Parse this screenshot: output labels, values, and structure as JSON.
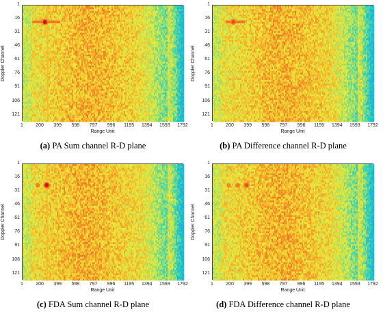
{
  "chart_data": [
    {
      "type": "heatmap",
      "xlabel": "Range Unit",
      "ylabel": "Doppler Channel",
      "x_ticks": [
        "1",
        "200",
        "399",
        "598",
        "797",
        "996",
        "1195",
        "1394",
        "1593",
        "1792"
      ],
      "y_ticks": [
        "1",
        "16",
        "31",
        "46",
        "61",
        "76",
        "91",
        "106",
        "121"
      ],
      "xlim": [
        1,
        1800
      ],
      "ylim": [
        1,
        128
      ],
      "colormap": [
        "#1fb4d6",
        "#35d3b7",
        "#9ee06a",
        "#e9ea3b",
        "#f5b52c",
        "#ef6a20",
        "#cf1515"
      ],
      "caption_tag": "(a)",
      "caption_text": " PA Sum channel R-D plane",
      "hot_spots": [
        {
          "range": 250,
          "doppler": 19,
          "intensity": 1.0
        }
      ],
      "clutter_ridges": [
        {
          "kind": "doppler_line",
          "doppler": 19,
          "range_start": 110,
          "range_end": 420
        },
        {
          "kind": "range_line",
          "range": 280
        }
      ],
      "noise_peak_range": 760
    },
    {
      "type": "heatmap",
      "xlabel": "Range Unit",
      "ylabel": "Doppler Channel",
      "x_ticks": [
        "1",
        "200",
        "399",
        "598",
        "797",
        "996",
        "1195",
        "1394",
        "1593",
        "1792"
      ],
      "y_ticks": [
        "1",
        "16",
        "31",
        "46",
        "61",
        "76",
        "91",
        "106",
        "121"
      ],
      "xlim": [
        1,
        1800
      ],
      "ylim": [
        1,
        128
      ],
      "colormap": [
        "#1fb4d6",
        "#35d3b7",
        "#9ee06a",
        "#e9ea3b",
        "#f5b52c",
        "#ef6a20",
        "#cf1515"
      ],
      "caption_tag": "(b)",
      "caption_text": " PA Difference channel R-D plane",
      "hot_spots": [
        {
          "range": 230,
          "doppler": 19,
          "intensity": 0.75
        }
      ],
      "clutter_ridges": [
        {
          "kind": "doppler_line",
          "doppler": 19,
          "range_start": 150,
          "range_end": 360
        }
      ],
      "noise_peak_range": 800
    },
    {
      "type": "heatmap",
      "xlabel": "Range Unit",
      "ylabel": "Doppler Channel",
      "x_ticks": [
        "1",
        "200",
        "399",
        "598",
        "797",
        "996",
        "1195",
        "1394",
        "1593",
        "1792"
      ],
      "y_ticks": [
        "1",
        "16",
        "31",
        "46",
        "61",
        "76",
        "91",
        "106",
        "121"
      ],
      "xlim": [
        1,
        1800
      ],
      "ylim": [
        1,
        128
      ],
      "colormap": [
        "#1fb4d6",
        "#35d3b7",
        "#9ee06a",
        "#e9ea3b",
        "#f5b52c",
        "#ef6a20",
        "#cf1515"
      ],
      "caption_tag": "(c)",
      "caption_text": " FDA Sum channel R-D plane",
      "hot_spots": [
        {
          "range": 270,
          "doppler": 24,
          "intensity": 1.0
        },
        {
          "range": 170,
          "doppler": 24,
          "intensity": 0.45
        }
      ],
      "clutter_ridges": [
        {
          "kind": "range_line",
          "range": 275
        }
      ],
      "noise_peak_range": 700
    },
    {
      "type": "heatmap",
      "xlabel": "Range Unit",
      "ylabel": "Doppler Channel",
      "x_ticks": [
        "1",
        "200",
        "399",
        "598",
        "797",
        "996",
        "1195",
        "1394",
        "1593",
        "1792"
      ],
      "y_ticks": [
        "1",
        "16",
        "31",
        "46",
        "61",
        "76",
        "91",
        "106",
        "121"
      ],
      "xlim": [
        1,
        1800
      ],
      "ylim": [
        1,
        128
      ],
      "colormap": [
        "#1fb4d6",
        "#35d3b7",
        "#9ee06a",
        "#e9ea3b",
        "#f5b52c",
        "#ef6a20",
        "#cf1515"
      ],
      "caption_tag": "(d)",
      "caption_text": " FDA Difference channel R-D plane",
      "hot_spots": [
        {
          "range": 380,
          "doppler": 24,
          "intensity": 0.7
        },
        {
          "range": 280,
          "doppler": 24,
          "intensity": 0.5
        },
        {
          "range": 180,
          "doppler": 24,
          "intensity": 0.35
        }
      ],
      "clutter_ridges": [],
      "noise_peak_range": 760
    }
  ]
}
